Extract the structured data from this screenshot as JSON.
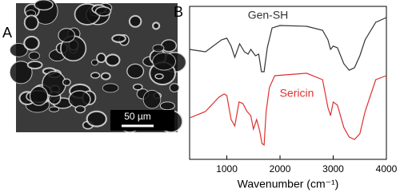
{
  "panel_a": {
    "label": "A",
    "scale_bar": "50 µm"
  },
  "chart_data": {
    "type": "line",
    "panel_label": "B",
    "xlabel": "Wavenumber (cm⁻¹)",
    "xlim": [
      300,
      4000
    ],
    "xticks": [
      1000,
      2000,
      3000,
      4000
    ],
    "ylim": [
      0,
      100
    ],
    "series": [
      {
        "name": "Gen-SH",
        "color": "#333333",
        "x": [
          300,
          600,
          900,
          1000,
          1080,
          1150,
          1240,
          1330,
          1400,
          1450,
          1540,
          1600,
          1650,
          1700,
          1760,
          1850,
          2000,
          2500,
          2800,
          2900,
          2950,
          3000,
          3080,
          3200,
          3300,
          3400,
          3500,
          3600,
          3800,
          4000
        ],
        "values": [
          71.9,
          70.3,
          78.1,
          79.2,
          74.0,
          66.7,
          75.5,
          70.3,
          68.8,
          71.9,
          67.7,
          68.8,
          57.3,
          57.3,
          72.9,
          85.9,
          87.5,
          87.0,
          84.4,
          78.1,
          71.9,
          74.0,
          72.9,
          62.5,
          58.3,
          59.9,
          67.7,
          78.1,
          89.6,
          92.7
        ]
      },
      {
        "name": "Sericin",
        "color": "#e03030",
        "x": [
          300,
          600,
          850,
          950,
          1000,
          1080,
          1150,
          1230,
          1300,
          1380,
          1450,
          1500,
          1560,
          1620,
          1660,
          1700,
          1740,
          1800,
          1900,
          2500,
          2800,
          2900,
          2950,
          3000,
          3080,
          3200,
          3300,
          3400,
          3500,
          3600,
          3800,
          4000
        ],
        "values": [
          27.1,
          31.3,
          40.6,
          42.7,
          41.7,
          26.0,
          21.9,
          37.5,
          36.5,
          31.3,
          28.6,
          19.8,
          26.0,
          18.2,
          10.4,
          9.4,
          31.3,
          46.9,
          54.7,
          56.3,
          52.1,
          33.9,
          28.6,
          37.5,
          35.4,
          20.8,
          14.6,
          13.0,
          16.7,
          31.3,
          52.1,
          54.7
        ]
      }
    ]
  }
}
